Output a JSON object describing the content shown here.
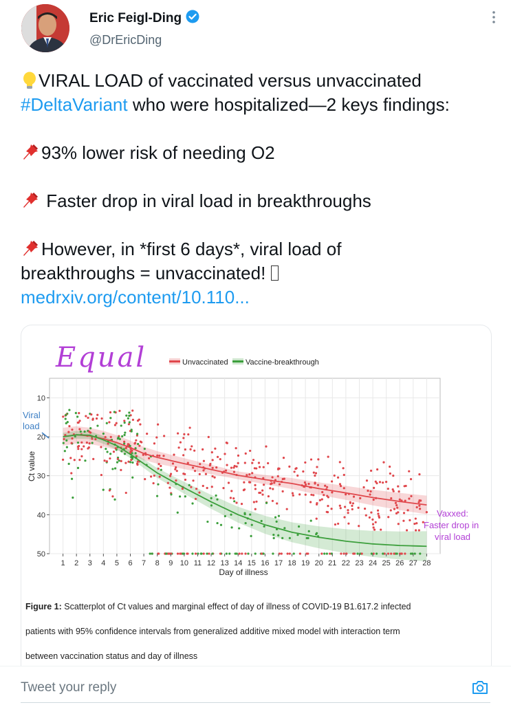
{
  "author": {
    "name": "Eric Feigl-Ding",
    "handle": "@DrEricDing",
    "verified": true
  },
  "tweet": {
    "intro_icon": "lightbulb-icon",
    "line1": "VIRAL LOAD of vaccinated versus unvaccinated",
    "hashtag": "#DeltaVariant",
    "line2": " who were hospitalized—2 keys findings:",
    "point1_icon": "pushpin-icon",
    "point1": "93% lower risk of needing O2",
    "point2": " Faster drop in viral load in breakthroughs",
    "point3a": "However, in *first 6 days*, viral load of",
    "point3b": "breakthroughs = unvaccinated! ",
    "point3b_icon": "placeholder-glyph",
    "link": "medrxiv.org/content/10.110..."
  },
  "figure": {
    "handwritten_equal": "Equal",
    "viral_load_label_1": "Viral",
    "viral_load_label_2": "load",
    "vaxxed_note_1": "Vaxxed:",
    "vaxxed_note_2": "Faster drop in",
    "vaxxed_note_3": "viral load",
    "caption_label": "Figure 1:",
    "caption_line1": " Scatterplot of Ct values and marginal effect of day of illness of COVID-19 B1.617.2 infected",
    "caption_line2": "patients with 95% confidence intervals from generalized additive mixed model with interaction term",
    "caption_line3": "between vaccination status and day of illness"
  },
  "chart_data": {
    "type": "scatter",
    "title": "",
    "xlabel": "Day of illness",
    "ylabel": "Ct value",
    "xlim": [
      0,
      29
    ],
    "ylim": [
      50,
      5
    ],
    "x_ticks": [
      1,
      2,
      3,
      4,
      5,
      6,
      7,
      8,
      9,
      10,
      11,
      12,
      13,
      14,
      15,
      16,
      17,
      18,
      19,
      20,
      21,
      22,
      23,
      24,
      25,
      26,
      27,
      28
    ],
    "y_ticks": [
      10,
      20,
      30,
      40,
      50
    ],
    "legend": [
      "Unvaccinated",
      "Vaccine-breakthrough"
    ],
    "series": [
      {
        "name": "Unvaccinated",
        "color": "#e0474c",
        "fit_x": [
          1,
          2,
          3,
          4,
          5,
          6,
          7,
          8,
          10,
          12,
          14,
          16,
          18,
          20,
          22,
          24,
          26,
          28
        ],
        "fit_y": [
          20,
          19.5,
          19.8,
          20.5,
          21.5,
          22.8,
          24.3,
          25.3,
          26.9,
          28.4,
          29.9,
          31.0,
          32.0,
          33.3,
          34.4,
          35.6,
          36.6,
          37.5
        ]
      },
      {
        "name": "Vaccine-breakthrough",
        "color": "#3c9f3c",
        "fit_x": [
          1,
          2,
          3,
          4,
          5,
          6,
          7,
          8,
          10,
          12,
          14,
          16,
          18,
          20,
          22,
          24,
          26,
          28
        ],
        "fit_y": [
          20,
          19.5,
          19.6,
          20.8,
          22.3,
          24.5,
          26.9,
          29.3,
          33.1,
          36.7,
          40.0,
          42.6,
          44.5,
          45.8,
          46.8,
          47.5,
          47.9,
          48.1
        ]
      }
    ]
  },
  "reply": {
    "placeholder": "Tweet your reply"
  }
}
